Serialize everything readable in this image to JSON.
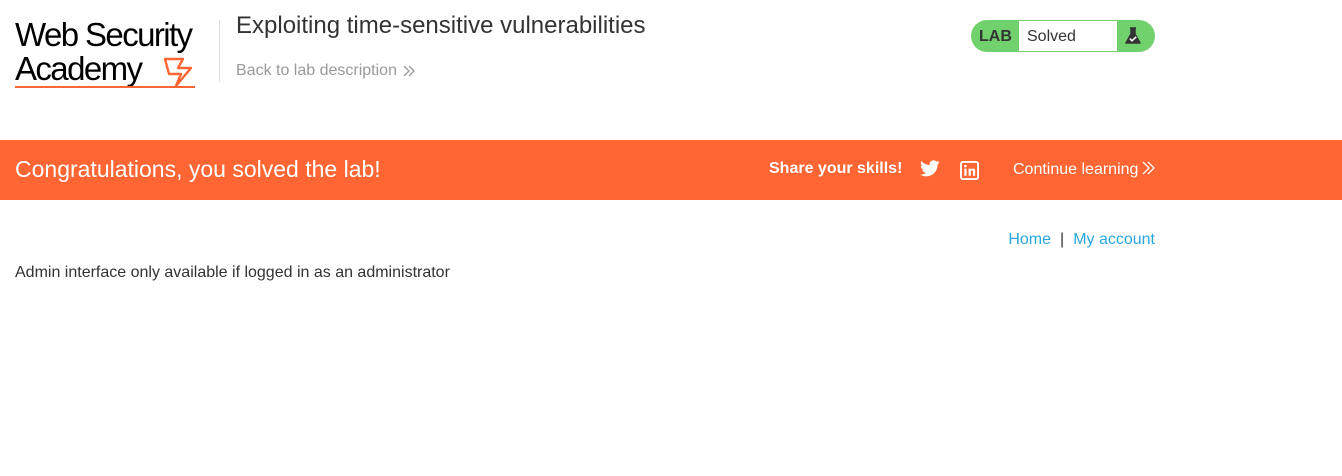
{
  "header": {
    "logo": {
      "line1": "Web Security",
      "line2": "Academy"
    },
    "lab_title": "Exploiting time-sensitive vulnerabilities",
    "back_link": "Back to lab description",
    "status": {
      "tag": "LAB",
      "text": "Solved",
      "icon": "flask-icon"
    }
  },
  "banner": {
    "message": "Congratulations, you solved the lab!",
    "share_label": "Share your skills!",
    "twitter_icon": "twitter-icon",
    "linkedin_icon": "linkedin-icon",
    "continue_label": "Continue learning"
  },
  "nav": {
    "home": "Home",
    "separator": "|",
    "my_account": "My account"
  },
  "content": {
    "message": "Admin interface only available if logged in as an administrator"
  },
  "colors": {
    "accent": "#ff6633",
    "status_green": "#70d16d",
    "link": "#29a7de"
  }
}
